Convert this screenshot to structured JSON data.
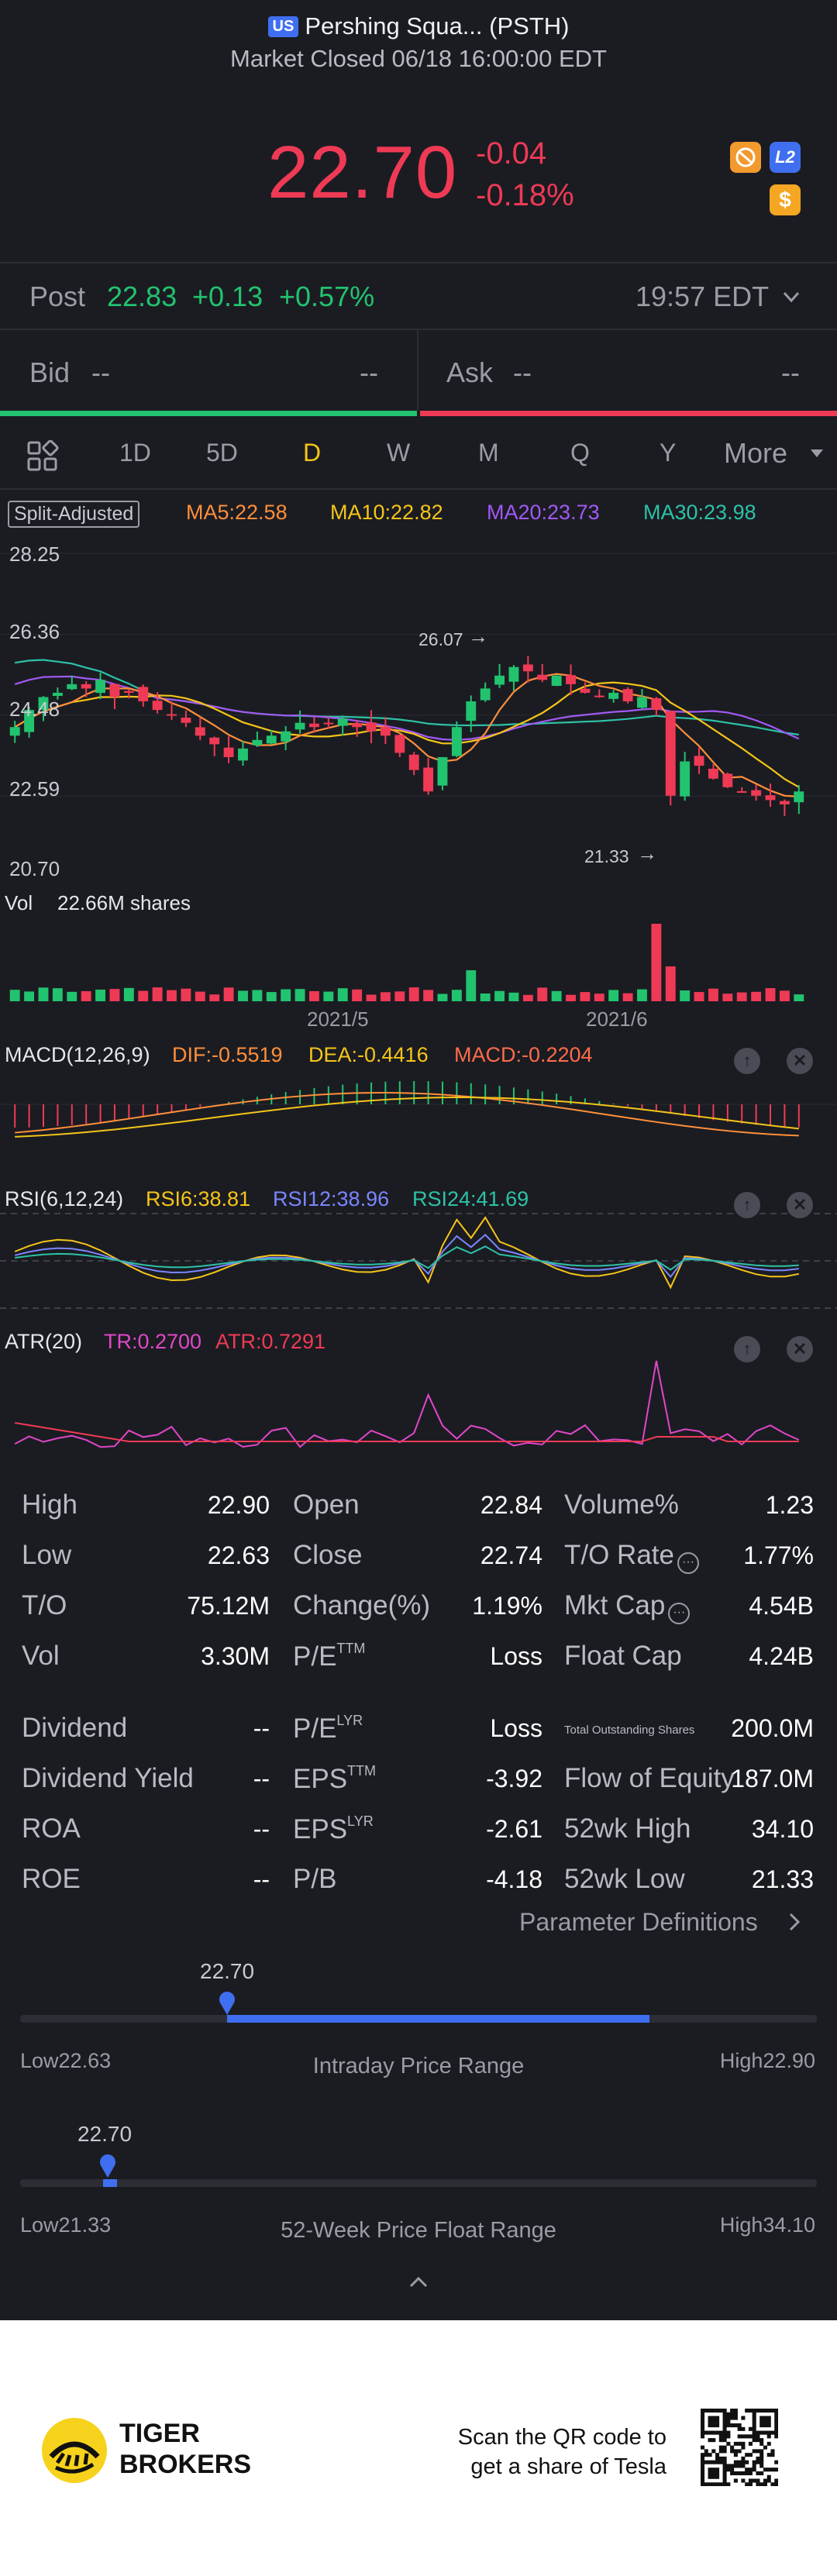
{
  "header": {
    "market_badge": "US",
    "title": "Pershing Squa... (PSTH)",
    "subtitle": "Market Closed 06/18 16:00:00 EDT"
  },
  "quote": {
    "price": "22.70",
    "change": "-0.04",
    "change_pct": "-0.18%",
    "level2_badge": "L2",
    "dollar_badge": "$"
  },
  "post": {
    "label": "Post",
    "price": "22.83",
    "change": "+0.13",
    "change_pct": "+0.57%",
    "time": "19:57 EDT"
  },
  "bid_ask": {
    "bid_label": "Bid",
    "bid_price": "--",
    "bid_size": "--",
    "ask_label": "Ask",
    "ask_price": "--",
    "ask_size": "--"
  },
  "tabs": [
    "1D",
    "5D",
    "D",
    "W",
    "M",
    "Q",
    "Y"
  ],
  "tabs_active": "D",
  "tabs_more": "More",
  "chart": {
    "adjust_label": "Split-Adjusted",
    "ma5": "MA5:22.58",
    "ma10": "MA10:22.82",
    "ma20": "MA20:23.73",
    "ma30": "MA30:23.98",
    "y_ticks": [
      "28.25",
      "26.36",
      "24.48",
      "22.59",
      "20.70"
    ],
    "high_annotation": "26.07",
    "low_annotation": "21.33",
    "vol_label": "Vol",
    "vol_value": "22.66M shares",
    "x_ticks": [
      "2021/5",
      "2021/6"
    ],
    "colors": {
      "up": "#22c36f",
      "down": "#ef3a55",
      "ma5": "#ff8f3a",
      "ma10": "#f5c518",
      "ma20": "#a259f5",
      "ma30": "#2dc2a6"
    }
  },
  "macd": {
    "label": "MACD(12,26,9)",
    "dif": "DIF:-0.5519",
    "dea": "DEA:-0.4416",
    "macd": "MACD:-0.2204"
  },
  "rsi": {
    "label": "RSI(6,12,24)",
    "rsi6": "RSI6:38.81",
    "rsi12": "RSI12:38.96",
    "rsi24": "RSI24:41.69"
  },
  "atr": {
    "label": "ATR(20)",
    "tr": "TR:0.2700",
    "atr": "ATR:0.7291"
  },
  "stats": {
    "col1": [
      {
        "label": "High",
        "value": "22.90"
      },
      {
        "label": "Low",
        "value": "22.63"
      },
      {
        "label": "T/O",
        "value": "75.12M"
      },
      {
        "label": "Vol",
        "value": "3.30M"
      },
      {
        "label": "Dividend",
        "value": "--"
      },
      {
        "label": "Dividend Yield",
        "value": "--"
      },
      {
        "label": "ROA",
        "value": "--"
      },
      {
        "label": "ROE",
        "value": "--"
      }
    ],
    "col2": [
      {
        "label": "Open",
        "sup": "",
        "value": "22.84"
      },
      {
        "label": "Close",
        "sup": "",
        "value": "22.74"
      },
      {
        "label": "Change(%)",
        "sup": "",
        "value": "1.19%"
      },
      {
        "label": "P/E",
        "sup": "TTM",
        "value": "Loss"
      },
      {
        "label": "P/E",
        "sup": "LYR",
        "value": "Loss"
      },
      {
        "label": "EPS",
        "sup": "TTM",
        "value": "-3.92"
      },
      {
        "label": "EPS",
        "sup": "LYR",
        "value": "-2.61"
      },
      {
        "label": "P/B",
        "sup": "",
        "value": "-4.18"
      }
    ],
    "col3": [
      {
        "label": "Volume%",
        "value": "1.23"
      },
      {
        "label": "T/O Rate",
        "value": "1.77%"
      },
      {
        "label": "Mkt Cap",
        "value": "4.54B"
      },
      {
        "label": "Float Cap",
        "value": "4.24B"
      },
      {
        "label": "Total Outstanding Shares",
        "value": "200.0M"
      },
      {
        "label": "Flow of Equity",
        "value": "187.0M"
      },
      {
        "label": "52wk High",
        "value": "34.10"
      },
      {
        "label": "52wk Low",
        "value": "21.33"
      }
    ],
    "param_link": "Parameter Definitions"
  },
  "intraday_range": {
    "current": "22.70",
    "low_label": "Low22.63",
    "high_label": "High22.90",
    "title": "Intraday Price Range",
    "position": 0.26,
    "fill_end": 0.79
  },
  "week52_range": {
    "current": "22.70",
    "low_label": "Low21.33",
    "high_label": "High34.10",
    "title": "52-Week Price Float Range",
    "position": 0.11
  },
  "footer": {
    "brand_line1": "TIGER",
    "brand_line2": "BROKERS",
    "promo_line1": "Scan the QR code to",
    "promo_line2": "get a share of Tesla"
  }
}
